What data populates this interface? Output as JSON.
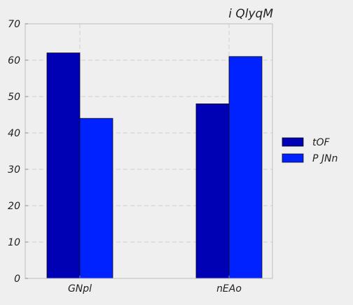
{
  "chart_data": {
    "type": "bar",
    "title": "i QlyqM",
    "xlabel": "",
    "ylabel": "",
    "categories": [
      "GNpl",
      "nEAo"
    ],
    "series": [
      {
        "name": "tOF",
        "values": [
          62,
          48
        ],
        "color": "#0000b4"
      },
      {
        "name": "P JNn",
        "values": [
          44,
          61
        ],
        "color": "#0022ff"
      }
    ],
    "ylim": [
      0,
      70
    ],
    "yticks": [
      0,
      10,
      20,
      30,
      40,
      50,
      60,
      70
    ],
    "grid": true,
    "legend_position": "right"
  },
  "colors": {
    "background": "#efefef",
    "plot_background": "#efefef",
    "grid": "#cfcfcf",
    "axis": "#bcbcbc"
  }
}
